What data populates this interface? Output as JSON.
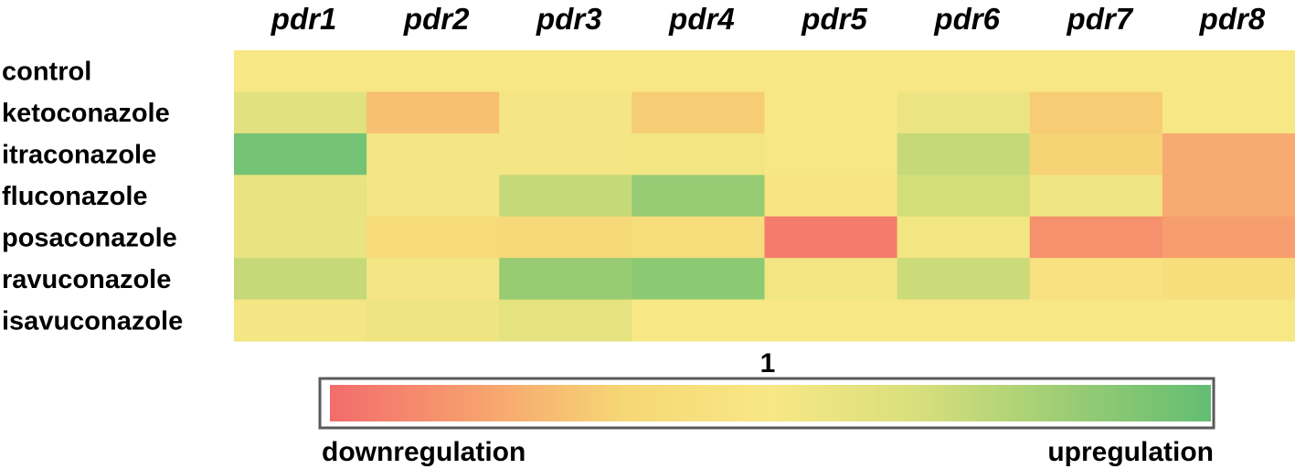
{
  "chart_data": {
    "type": "heatmap",
    "columns": [
      "pdr1",
      "pdr2",
      "pdr3",
      "pdr4",
      "pdr5",
      "pdr6",
      "pdr7",
      "pdr8"
    ],
    "rows": [
      "control",
      "ketoconazole",
      "itraconazole",
      "fluconazole",
      "posaconazole",
      "ravuconazole",
      "isavuconazole"
    ],
    "values": [
      [
        0.5,
        0.5,
        0.5,
        0.5,
        0.5,
        0.5,
        0.5,
        0.5
      ],
      [
        0.62,
        0.26,
        0.52,
        0.3,
        0.5,
        0.56,
        0.3,
        0.5
      ],
      [
        0.95,
        0.52,
        0.52,
        0.53,
        0.5,
        0.72,
        0.32,
        0.2
      ],
      [
        0.58,
        0.52,
        0.72,
        0.85,
        0.47,
        0.68,
        0.54,
        0.2
      ],
      [
        0.58,
        0.38,
        0.35,
        0.4,
        0.05,
        0.53,
        0.12,
        0.16
      ],
      [
        0.72,
        0.52,
        0.85,
        0.88,
        0.53,
        0.7,
        0.44,
        0.4
      ],
      [
        0.52,
        0.55,
        0.6,
        0.5,
        0.5,
        0.5,
        0.5,
        0.5
      ]
    ],
    "color_scale": {
      "colors": [
        "#f26c6c",
        "#f7a06e",
        "#f6d776",
        "#f8e785",
        "#d8df7c",
        "#9dcd74",
        "#62bd72"
      ],
      "center_label": "1",
      "low_label": "downregulation",
      "high_label": "upregulation"
    }
  }
}
